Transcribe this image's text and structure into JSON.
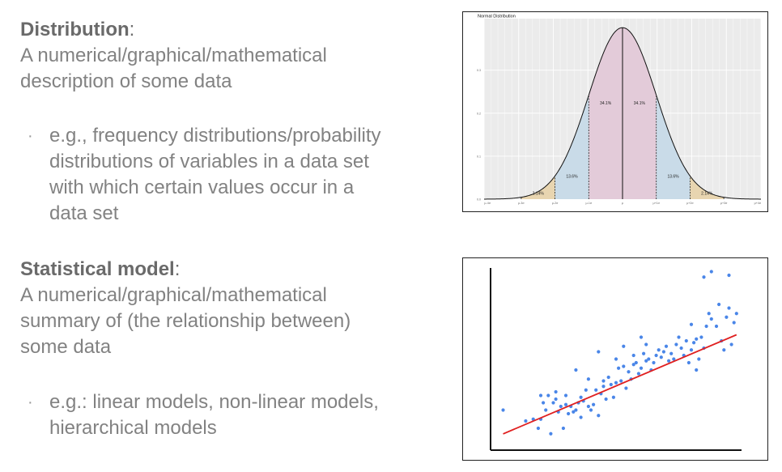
{
  "section1": {
    "heading": "Distribution",
    "heading_suffix": ":",
    "desc_line1": "A numerical/graphical/mathematical",
    "desc_line2": "description of some data",
    "bullet": {
      "line1": "e.g., frequency distributions/probability",
      "line2": "distributions of variables in a data set",
      "line3": "with which certain values occur in a",
      "line4": "data set"
    }
  },
  "section2": {
    "heading": "Statistical model",
    "heading_suffix": ":",
    "desc_line1": "A numerical/graphical/mathematical",
    "desc_line2": "summary of (the relationship between)",
    "desc_line3": "some data",
    "bullet": {
      "line1": "e.g.: linear models, non-linear models,",
      "line2": "hierarchical models"
    }
  },
  "bullet_symbol": "·",
  "chart_data": [
    {
      "type": "area",
      "title": "Normal Distribution",
      "x_ticks": [
        "μ-4σ",
        "μ-3σ",
        "μ-2σ",
        "μ-1σ",
        "μ",
        "μ+1σ",
        "μ+2σ",
        "μ+3σ",
        "μ+4σ"
      ],
      "y_ticks": [
        "0.0",
        "0.1",
        "0.2",
        "0.3"
      ],
      "ylim": [
        0,
        0.42
      ],
      "xlim": [
        -4.1,
        4.1
      ],
      "regions": [
        {
          "from": -3,
          "to": -2,
          "label": "2.14%",
          "color": "#e8d5b0"
        },
        {
          "from": -2,
          "to": -1,
          "label": "13.6%",
          "color": "#c9dbe8"
        },
        {
          "from": -1,
          "to": 0,
          "label": "34.1%",
          "color": "#e3cbd9"
        },
        {
          "from": 0,
          "to": 1,
          "label": "34.1%",
          "color": "#e3cbd9"
        },
        {
          "from": 1,
          "to": 2,
          "label": "13.6%",
          "color": "#c9dbe8"
        },
        {
          "from": 2,
          "to": 3,
          "label": "2.14%",
          "color": "#e8d5b0"
        }
      ],
      "grid": true
    },
    {
      "type": "scatter",
      "xlim": [
        0,
        100
      ],
      "ylim": [
        0,
        100
      ],
      "points": [
        [
          5,
          22
        ],
        [
          14,
          16
        ],
        [
          17,
          17
        ],
        [
          19,
          12
        ],
        [
          20,
          17
        ],
        [
          22,
          22
        ],
        [
          21,
          26
        ],
        [
          25,
          26
        ],
        [
          26,
          28
        ],
        [
          24,
          9
        ],
        [
          27,
          21
        ],
        [
          28,
          24
        ],
        [
          30,
          25
        ],
        [
          31,
          20
        ],
        [
          32,
          24
        ],
        [
          29,
          12
        ],
        [
          33,
          21
        ],
        [
          34,
          22
        ],
        [
          35,
          26
        ],
        [
          36,
          18
        ],
        [
          37,
          27
        ],
        [
          38,
          33
        ],
        [
          39,
          24
        ],
        [
          40,
          22
        ],
        [
          41,
          25
        ],
        [
          42,
          33
        ],
        [
          43,
          19
        ],
        [
          44,
          31
        ],
        [
          45,
          35
        ],
        [
          46,
          28
        ],
        [
          47,
          40
        ],
        [
          48,
          36
        ],
        [
          49,
          29
        ],
        [
          50,
          37
        ],
        [
          51,
          45
        ],
        [
          52,
          38
        ],
        [
          53,
          46
        ],
        [
          54,
          34
        ],
        [
          55,
          43
        ],
        [
          56,
          39
        ],
        [
          57,
          47
        ],
        [
          58,
          48
        ],
        [
          59,
          42
        ],
        [
          60,
          45
        ],
        [
          61,
          53
        ],
        [
          62,
          49
        ],
        [
          63,
          50
        ],
        [
          64,
          44
        ],
        [
          65,
          48
        ],
        [
          66,
          52
        ],
        [
          67,
          55
        ],
        [
          68,
          51
        ],
        [
          69,
          54
        ],
        [
          70,
          57
        ],
        [
          71,
          49
        ],
        [
          72,
          53
        ],
        [
          73,
          50
        ],
        [
          74,
          58
        ],
        [
          75,
          62
        ],
        [
          76,
          56
        ],
        [
          77,
          52
        ],
        [
          78,
          60
        ],
        [
          79,
          48
        ],
        [
          80,
          55
        ],
        [
          81,
          59
        ],
        [
          82,
          44
        ],
        [
          83,
          50
        ],
        [
          84,
          62
        ],
        [
          85,
          56
        ],
        [
          86,
          68
        ],
        [
          87,
          75
        ],
        [
          88,
          72
        ],
        [
          90,
          68
        ],
        [
          91,
          80
        ],
        [
          92,
          60
        ],
        [
          93,
          55
        ],
        [
          94,
          73
        ],
        [
          95,
          78
        ],
        [
          96,
          58
        ],
        [
          97,
          70
        ],
        [
          98,
          75
        ],
        [
          80,
          69
        ],
        [
          82,
          61
        ],
        [
          60,
          62
        ],
        [
          57,
          52
        ],
        [
          34,
          44
        ],
        [
          43,
          54
        ],
        [
          23,
          30
        ],
        [
          30,
          30
        ],
        [
          50,
          50
        ],
        [
          53,
          57
        ],
        [
          62,
          58
        ],
        [
          85,
          95
        ],
        [
          88,
          98
        ],
        [
          95,
          96
        ],
        [
          20,
          30
        ],
        [
          26,
          32
        ],
        [
          36,
          29
        ],
        [
          39,
          39
        ],
        [
          45,
          38
        ]
      ],
      "fit_line": {
        "slope": 0.585,
        "intercept": 6.0
      },
      "colors": {
        "points": "#4a86e8",
        "line": "#e02020"
      }
    }
  ]
}
